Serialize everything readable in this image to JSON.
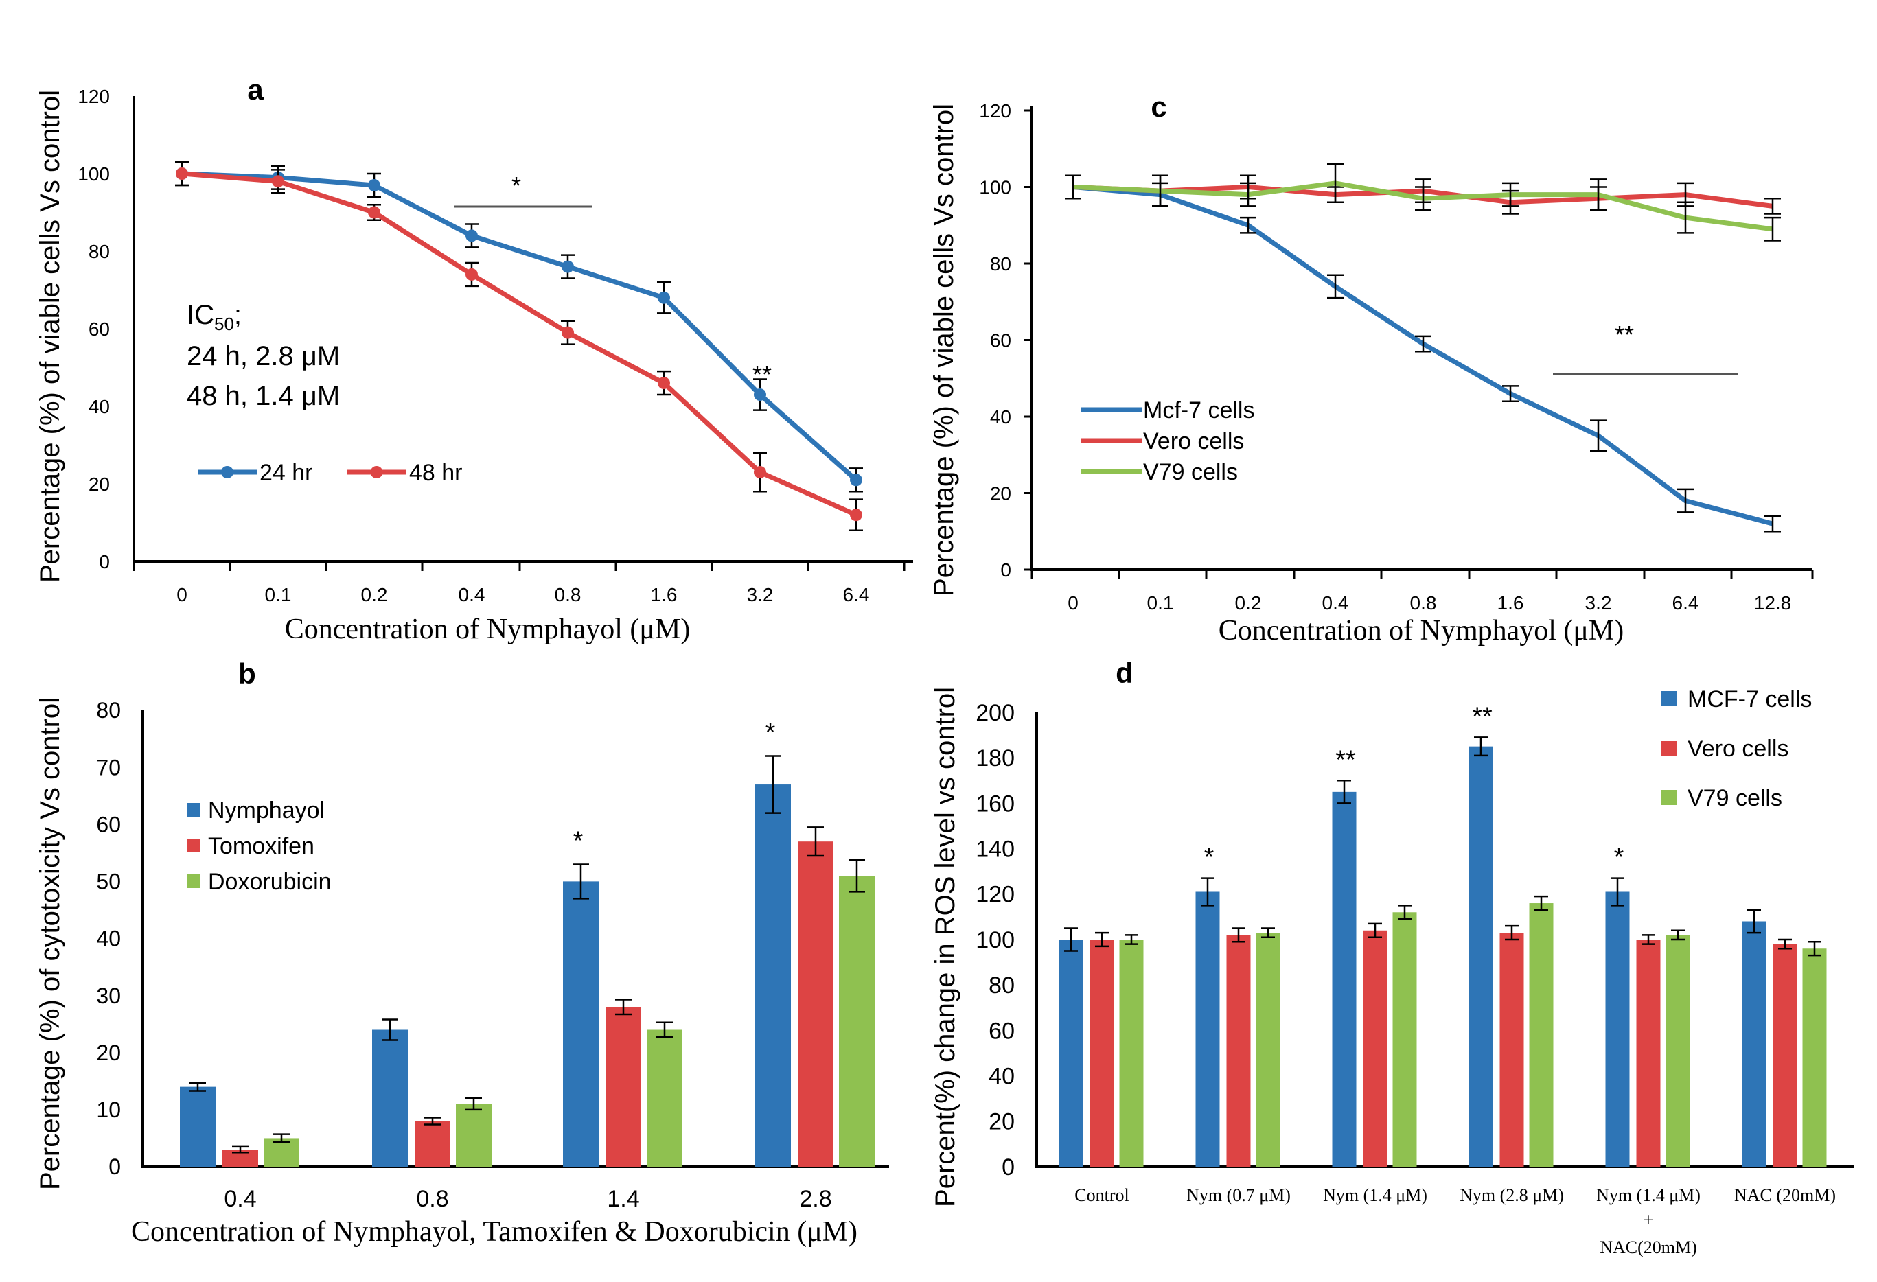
{
  "colors": {
    "blue": "#2E75B6",
    "red": "#DD4444",
    "green": "#8FC150",
    "text": "#000000",
    "sig_line": "#555555"
  },
  "chart_data": [
    {
      "panel": "a",
      "type": "line",
      "title": "a",
      "xlabel": "Concentration  of Nymphayol   (μM)",
      "ylabel": "Percentage (%) of viable cells Vs control",
      "categories": [
        "0",
        "0.1",
        "0.2",
        "0.4",
        "0.8",
        "1.6",
        "3.2",
        "6.4"
      ],
      "ylim": [
        0,
        120
      ],
      "yticks": [
        "0",
        "20",
        "40",
        "60",
        "80",
        "100",
        "120"
      ],
      "series": [
        {
          "name": "24 hr",
          "color": "blue",
          "values": [
            100,
            99,
            97,
            84,
            76,
            68,
            43,
            21
          ],
          "errors": [
            3,
            3,
            3,
            3,
            3,
            4,
            4,
            3
          ]
        },
        {
          "name": "48 hr",
          "color": "red",
          "values": [
            100,
            98,
            90,
            74,
            59,
            46,
            23,
            12
          ],
          "errors": [
            3,
            3,
            2,
            3,
            3,
            3,
            5,
            4
          ]
        }
      ],
      "ic50": {
        "label_main": "IC",
        "label_sub": "50",
        "label_end": ";",
        "line1": "24 h, 2.8 μM",
        "line2": "48 h, 1.4 μM"
      },
      "annotations": [
        {
          "text": "*",
          "kind": "bracket",
          "from": 3,
          "to": 4
        },
        {
          "text": "**",
          "kind": "point",
          "at": 6
        }
      ],
      "legend": "bottom-left"
    },
    {
      "panel": "b",
      "type": "bar",
      "title": "b",
      "xlabel": "Concentration  of Nymphayol,  Tamoxifen & Doxorubicin (μM)",
      "ylabel": "Percentage  (%) of cytotoxicity Vs control",
      "categories": [
        "0.4",
        "0.8",
        "1.4",
        "2.8"
      ],
      "ylim": [
        0,
        80
      ],
      "yticks": [
        "0",
        "10",
        "20",
        "30",
        "40",
        "50",
        "60",
        "70",
        "80"
      ],
      "series": [
        {
          "name": "Nymphayol",
          "color": "blue",
          "values": [
            14,
            24,
            50,
            67
          ],
          "errors": [
            0.7,
            1.8,
            3,
            5
          ]
        },
        {
          "name": "Tomoxifen",
          "color": "red",
          "values": [
            3,
            8,
            28,
            57
          ],
          "errors": [
            0.5,
            0.6,
            1.3,
            2.5
          ]
        },
        {
          "name": "Doxorubicin",
          "color": "green",
          "values": [
            5,
            11,
            24,
            51
          ],
          "errors": [
            0.7,
            1,
            1.3,
            2.8
          ]
        }
      ],
      "annotations": [
        {
          "text": "*",
          "category": 2,
          "series": 0
        },
        {
          "text": "*",
          "category": 3,
          "series": 0
        }
      ],
      "legend": "top-left"
    },
    {
      "panel": "c",
      "type": "line",
      "title": "c",
      "xlabel": "Concentration  of Nymphayol  (μM)",
      "ylabel": "Percentage (%) of viable cells Vs control",
      "categories": [
        "0",
        "0.1",
        "0.2",
        "0.4",
        "0.8",
        "1.6",
        "3.2",
        "6.4",
        "12.8"
      ],
      "ylim": [
        0,
        120
      ],
      "yticks": [
        "0",
        "20",
        "40",
        "60",
        "80",
        "100",
        "120"
      ],
      "series": [
        {
          "name": "Mcf-7 cells",
          "color": "blue",
          "values": [
            100,
            98,
            90,
            74,
            59,
            46,
            35,
            18,
            12
          ],
          "errors": [
            3,
            3,
            2,
            3,
            2,
            2,
            4,
            3,
            2
          ]
        },
        {
          "name": "Vero cells",
          "color": "red",
          "values": [
            100,
            99,
            100,
            98,
            99,
            96,
            97,
            98,
            95
          ],
          "errors": [
            3,
            4,
            3,
            2,
            3,
            3,
            3,
            3,
            2
          ]
        },
        {
          "name": "V79 cells",
          "color": "green",
          "values": [
            100,
            99,
            98,
            101,
            97,
            98,
            98,
            92,
            89
          ],
          "errors": [
            3,
            4,
            3,
            5,
            3,
            3,
            4,
            4,
            3
          ]
        }
      ],
      "annotations": [
        {
          "text": "**",
          "kind": "bracket",
          "from": 6,
          "to": 8
        }
      ],
      "legend": "bottom-left"
    },
    {
      "panel": "d",
      "type": "bar",
      "title": "d",
      "xlabel": "",
      "ylabel": "Percent(%) change in ROS level vs control",
      "categories": [
        "Control",
        "Nym  (0.7 μM)",
        "Nym  (1.4 μM)",
        "Nym  (2.8 μM)",
        "Nym  (1.4 μM)",
        "NAC  (20mM)"
      ],
      "category_extra": {
        "plus": "+",
        "line2": "NAC(20mM)",
        "index": 4
      },
      "ylim": [
        0,
        200
      ],
      "yticks": [
        "0",
        "20",
        "40",
        "60",
        "80",
        "100",
        "120",
        "140",
        "160",
        "180",
        "200"
      ],
      "series": [
        {
          "name": "MCF-7 cells",
          "color": "blue",
          "values": [
            100,
            121,
            165,
            185,
            121,
            108
          ],
          "errors": [
            5,
            6,
            5,
            4,
            6,
            5
          ]
        },
        {
          "name": "Vero cells",
          "color": "red",
          "values": [
            100,
            102,
            104,
            103,
            100,
            98
          ],
          "errors": [
            3,
            3,
            3,
            3,
            2,
            2
          ]
        },
        {
          "name": "V79 cells",
          "color": "green",
          "values": [
            100,
            103,
            112,
            116,
            102,
            96
          ],
          "errors": [
            2,
            2,
            3,
            3,
            2,
            3
          ]
        }
      ],
      "annotations": [
        {
          "text": "*",
          "category": 1,
          "series": 0
        },
        {
          "text": "**",
          "category": 2,
          "series": 0
        },
        {
          "text": "**",
          "category": 3,
          "series": 0
        },
        {
          "text": "*",
          "category": 4,
          "series": 0
        }
      ],
      "legend": "top-right"
    }
  ]
}
